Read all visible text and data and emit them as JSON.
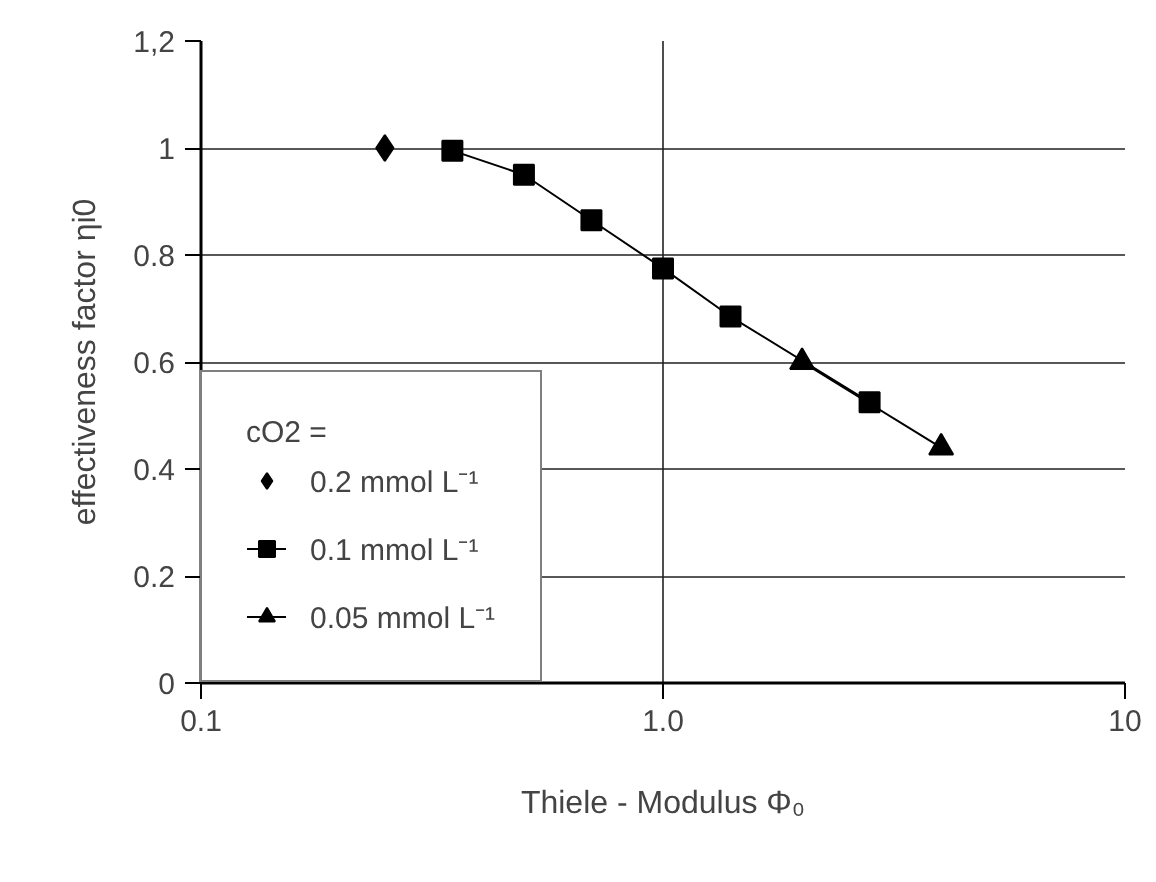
{
  "chart_data": {
    "type": "line",
    "xlabel": "Thiele - Modulus Φ₀",
    "ylabel": "effectiveness factor ηi0",
    "legend_title": "cO2 =",
    "series": [
      {
        "name": "0.2 mmol L⁻¹",
        "color": "#000000",
        "marker": "diamond",
        "x": [
          0.25
        ],
        "values": [
          1.0
        ]
      },
      {
        "name": "0.1 mmol L⁻¹",
        "color": "#000000",
        "marker": "square",
        "x": [
          0.35,
          0.5,
          0.7,
          1.0,
          1.4,
          2.8
        ],
        "values": [
          0.995,
          0.95,
          0.865,
          0.775,
          0.685,
          0.525
        ]
      },
      {
        "name": "0.05 mmol L⁻¹",
        "color": "#000000",
        "marker": "triangle",
        "x": [
          2.0,
          4.0
        ],
        "values": [
          0.6,
          0.44
        ]
      }
    ],
    "log": "x",
    "xlim": [
      0.1,
      10
    ],
    "xticks": [
      0.1,
      {
        "value": 1,
        "label": "1.0"
      },
      10
    ],
    "ylim": [
      0,
      1.2
    ],
    "yticks": [
      0,
      0.2,
      0.4,
      0.6,
      0.8,
      1,
      {
        "value": 1.2,
        "label": "1,2"
      }
    ],
    "grid": true,
    "legend": "bottom left"
  }
}
